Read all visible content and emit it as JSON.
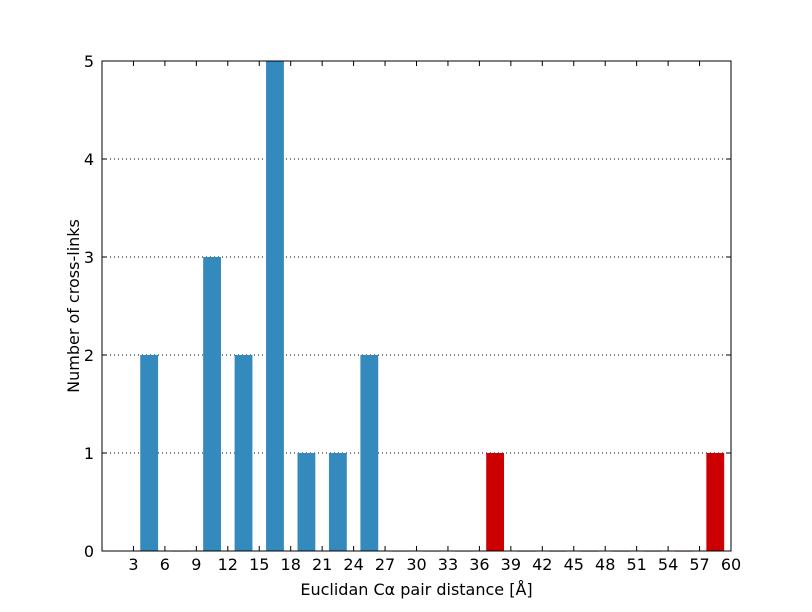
{
  "chart_data": {
    "type": "bar",
    "xlabel": "Euclidan Cα pair distance [Å]",
    "ylabel": "Number of cross-links",
    "xlim": [
      0,
      60
    ],
    "ylim": [
      0,
      5
    ],
    "xticks": [
      3,
      6,
      9,
      12,
      15,
      18,
      21,
      24,
      27,
      30,
      33,
      36,
      39,
      42,
      45,
      48,
      51,
      54,
      57,
      60
    ],
    "yticks": [
      0,
      1,
      2,
      3,
      4,
      5
    ],
    "grid": "y-dotted",
    "bin_width": 3,
    "bar_width": 1.7,
    "series": [
      {
        "color": "#348abd",
        "x": [
          4.5,
          7.5,
          10.5,
          13.5,
          16.5,
          19.5,
          22.5,
          25.5,
          28.5,
          31.5,
          34.5
        ],
        "values": [
          2,
          0,
          3,
          2,
          5,
          1,
          1,
          2,
          0,
          0,
          0
        ]
      },
      {
        "color": "#cc0000",
        "x": [
          37.5,
          40.5,
          43.5,
          46.5,
          49.5,
          52.5,
          55.5,
          58.5
        ],
        "values": [
          1,
          0,
          0,
          0,
          0,
          0,
          0,
          1
        ]
      }
    ]
  }
}
